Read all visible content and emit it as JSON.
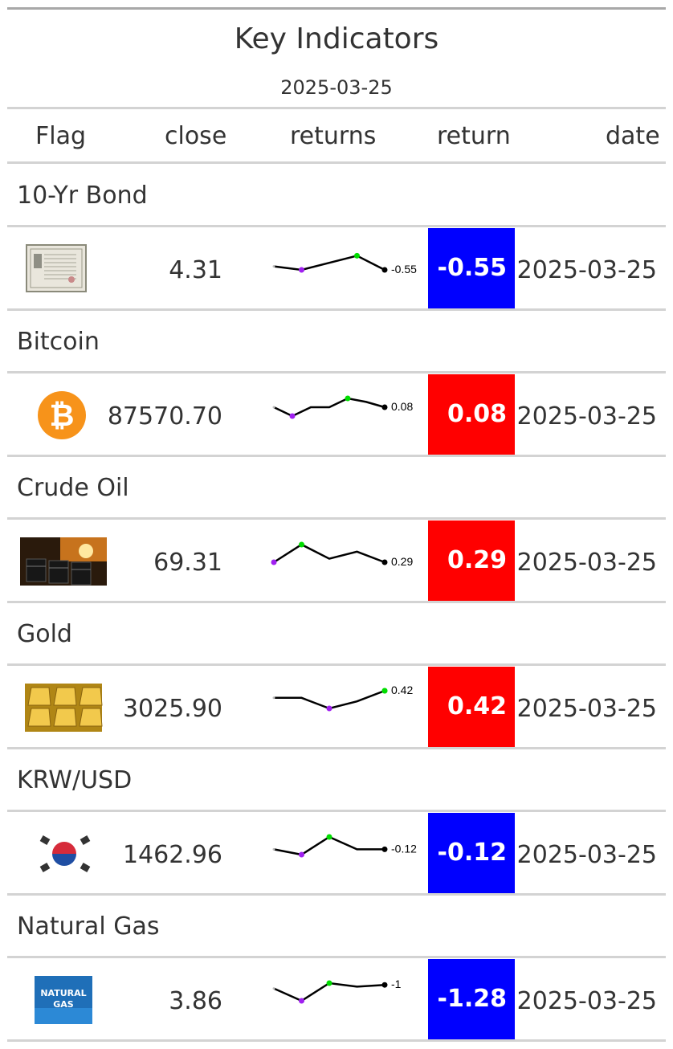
{
  "title": "Key Indicators",
  "subtitle": "2025-03-25",
  "columns": [
    "Flag",
    "close",
    "returns",
    "return",
    "date"
  ],
  "colors": {
    "positive": "#ff0000",
    "negative": "#0000ff",
    "spark_high": "#00dd00",
    "spark_low": "#a020f0",
    "spark_line": "#000000"
  },
  "rows": [
    {
      "group": "10-Yr Bond",
      "flag_icon": "bond-certificate-icon",
      "close": "4.31",
      "spark_label": "-0.55",
      "spark": [
        0.2,
        0.0,
        0.4,
        0.8,
        0.0
      ],
      "return": "-0.55",
      "return_sign": "negative",
      "date": "2025-03-25"
    },
    {
      "group": "Bitcoin",
      "flag_icon": "bitcoin-icon",
      "close": "87570.70",
      "spark_label": "0.08",
      "spark": [
        0.5,
        0.0,
        0.5,
        0.5,
        1.0,
        0.8,
        0.5
      ],
      "return": "0.08",
      "return_sign": "positive",
      "date": "2025-03-25"
    },
    {
      "group": "Crude Oil",
      "flag_icon": "crude-oil-barrels-icon",
      "close": "69.31",
      "spark_label": "0.29",
      "spark": [
        0.0,
        1.0,
        0.2,
        0.6,
        0.0
      ],
      "return": "0.29",
      "return_sign": "positive",
      "date": "2025-03-25"
    },
    {
      "group": "Gold",
      "flag_icon": "gold-bars-icon",
      "close": "3025.90",
      "spark_label": "0.42",
      "spark": [
        0.6,
        0.6,
        0.0,
        0.4,
        1.0
      ],
      "return": "0.42",
      "return_sign": "positive",
      "date": "2025-03-25"
    },
    {
      "group": "KRW/USD",
      "flag_icon": "korea-flag-icon",
      "close": "1462.96",
      "spark_label": "-0.12",
      "spark": [
        0.3,
        0.0,
        1.0,
        0.3,
        0.3
      ],
      "return": "-0.12",
      "return_sign": "negative",
      "date": "2025-03-25"
    },
    {
      "group": "Natural Gas",
      "flag_icon": "natural-gas-icon",
      "close": "3.86",
      "flag_text": [
        "NATURAL",
        "GAS"
      ],
      "spark_label": "-1",
      "spark": [
        0.7,
        0.0,
        1.0,
        0.8,
        0.9
      ],
      "return": "-1.28",
      "return_sign": "negative",
      "date": "2025-03-25"
    }
  ]
}
